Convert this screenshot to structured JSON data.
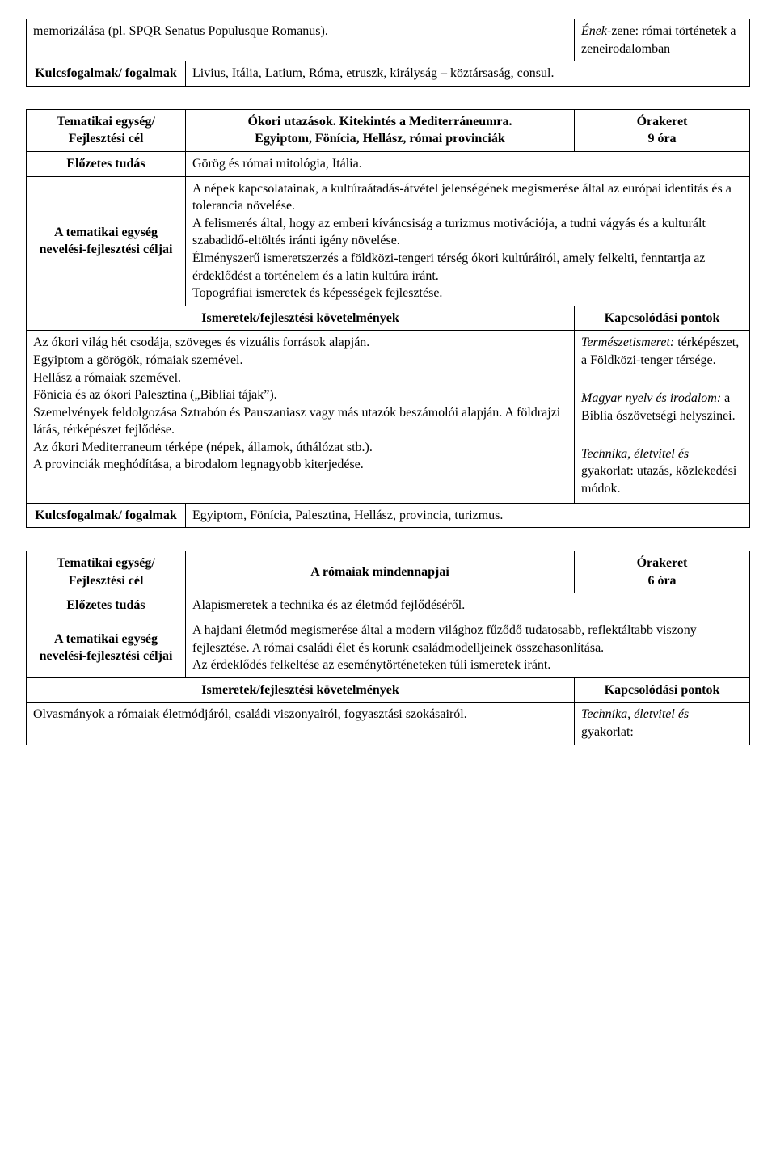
{
  "table1": {
    "row1_left": "memorizálása (pl. SPQR Senatus Populusque Romanus).",
    "row1_right_italic": "Ének-",
    "row1_right_rest": "zene: római történetek a zeneirodalomban",
    "row2_label": "Kulcsfogalmak/ fogalmak",
    "row2_text": "Livius, Itália, Latium, Róma, etruszk, királyság – köztársaság, consul."
  },
  "table2": {
    "r1_label": "Tematikai egység/ Fejlesztési cél",
    "r1_title_l1": "Ókori utazások. Kitekintés a Mediterráneumra.",
    "r1_title_l2": "Egyiptom, Fönícia, Hellász, római provinciák",
    "r1_ora_l1": "Órakeret",
    "r1_ora_l2": "9 óra",
    "r2_label": "Előzetes tudás",
    "r2_text": "Görög és római mitológia, Itália.",
    "r3_label": "A tematikai egység nevelési-fejlesztési céljai",
    "r3_p1": "A népek kapcsolatainak, a kultúraátadás-átvétel jelenségének megismerése által az európai identitás és a tolerancia növelése.",
    "r3_p2": "A felismerés által, hogy az emberi kíváncsiság a turizmus motivációja, a tudni vágyás és a kulturált szabadidő-eltöltés iránti igény növelése.",
    "r3_p3": "Élményszerű ismeretszerzés a földközi-tengeri térség ókori kultúráiról, amely felkelti, fenntartja az érdeklődést a történelem és a latin kultúra iránt.",
    "r3_p4": "Topográfiai ismeretek és képességek fejlesztése.",
    "r4_left_header": "Ismeretek/fejlesztési követelmények",
    "r4_right_header": "Kapcsolódási pontok",
    "r5_p1": "Az ókori világ hét csodája, szöveges és vizuális források alapján.",
    "r5_p2": "Egyiptom a görögök, rómaiak szemével.",
    "r5_p3": "Hellász a rómaiak szemével.",
    "r5_p4": "Fönícia és az ókori Palesztina („Bibliai tájak”).",
    "r5_p5": "Szemelvények feldolgozása Sztrabón és Pauszaniasz vagy más utazók beszámolói alapján. A földrajzi látás, térképészet fejlődése.",
    "r5_p6": "Az ókori Mediterraneum térképe (népek, államok, úthálózat stb.).",
    "r5_p7": "A provinciák meghódítása, a birodalom legnagyobb kiterjedése.",
    "r5_right_a_italic": "Természetismeret:",
    "r5_right_a_rest": " térképészet, a Földközi-tenger térsége.",
    "r5_right_b_italic": "Magyar nyelv és irodalom:",
    "r5_right_b_rest": " a Biblia ószövetségi helyszínei.",
    "r5_right_c_italic": "Technika, életvitel és",
    "r5_right_c_rest": " gyakorlat: utazás, közlekedési módok.",
    "r6_label": "Kulcsfogalmak/ fogalmak",
    "r6_text": "Egyiptom, Fönícia, Palesztina, Hellász, provincia, turizmus."
  },
  "table3": {
    "r1_label": "Tematikai egység/ Fejlesztési cél",
    "r1_title": "A rómaiak mindennapjai",
    "r1_ora_l1": "Órakeret",
    "r1_ora_l2": "6 óra",
    "r2_label": "Előzetes tudás",
    "r2_text": "Alapismeretek a technika és az életmód fejlődéséről.",
    "r3_label": "A tematikai egység nevelési-fejlesztési céljai",
    "r3_p1": "A hajdani életmód megismerése által a modern világhoz fűződő tudatosabb, reflektáltabb viszony fejlesztése. A római családi élet és korunk családmodelljeinek összehasonlítása.",
    "r3_p2": "Az érdeklődés felkeltése az eseménytörténeteken túli ismeretek iránt.",
    "r4_left_header": "Ismeretek/fejlesztési követelmények",
    "r4_right_header": "Kapcsolódási pontok",
    "r5_left": "Olvasmányok a rómaiak életmódjáról, családi viszonyairól, fogyasztási szokásairól.",
    "r5_right_italic": "Technika, életvitel és",
    "r5_right_rest": " gyakorlat:"
  }
}
